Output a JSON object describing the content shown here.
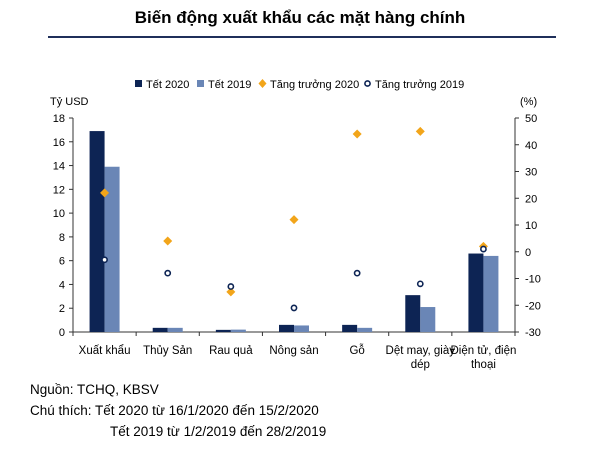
{
  "title": "Biến động xuất khẩu các mặt hàng chính",
  "notes": {
    "source": "Nguồn: TCHQ, KBSV",
    "note_line1": "Chú thích: Tết 2020 từ 16/1/2020 đến 15/2/2020",
    "note_line2": "Tết 2019 từ 1/2/2019 đến 28/2/2019"
  },
  "colors": {
    "tet2020": "#0d2454",
    "tet2019": "#6a86b6",
    "growth2020": "#f2a51a",
    "growth2019": "#0d2454"
  },
  "chart_data": {
    "type": "bar",
    "categories": [
      [
        "Xuất khẩu"
      ],
      [
        "Thủy Sản"
      ],
      [
        "Rau quả"
      ],
      [
        "Nông sản"
      ],
      [
        "Gỗ"
      ],
      [
        "Dệt may, giày",
        "dép"
      ],
      [
        "Điện tử, điện",
        "thoại"
      ]
    ],
    "left_axis": {
      "label": "Tỷ USD",
      "min": 0,
      "max": 18,
      "ticks": [
        0,
        2,
        4,
        6,
        8,
        10,
        12,
        14,
        16,
        18
      ]
    },
    "right_axis": {
      "label": "(%)",
      "min": -30,
      "max": 50,
      "ticks": [
        -30,
        -20,
        -10,
        0,
        10,
        20,
        30,
        40,
        50
      ]
    },
    "legend_position": "top",
    "series": [
      {
        "name": "Tết 2020",
        "kind": "bar",
        "axis": "left",
        "values": [
          16.9,
          0.35,
          0.18,
          0.6,
          0.6,
          3.1,
          6.6
        ]
      },
      {
        "name": "Tết 2019",
        "kind": "bar",
        "axis": "left",
        "values": [
          13.9,
          0.35,
          0.2,
          0.55,
          0.35,
          2.1,
          6.4
        ]
      },
      {
        "name": "Tăng trưởng 2020",
        "kind": "marker-diamond",
        "axis": "right",
        "values": [
          22,
          4,
          -15,
          12,
          44,
          45,
          2
        ]
      },
      {
        "name": "Tăng trưởng 2019",
        "kind": "marker-circle",
        "axis": "right",
        "values": [
          -3,
          -8,
          -13,
          -21,
          -8,
          -12,
          1
        ]
      }
    ]
  }
}
